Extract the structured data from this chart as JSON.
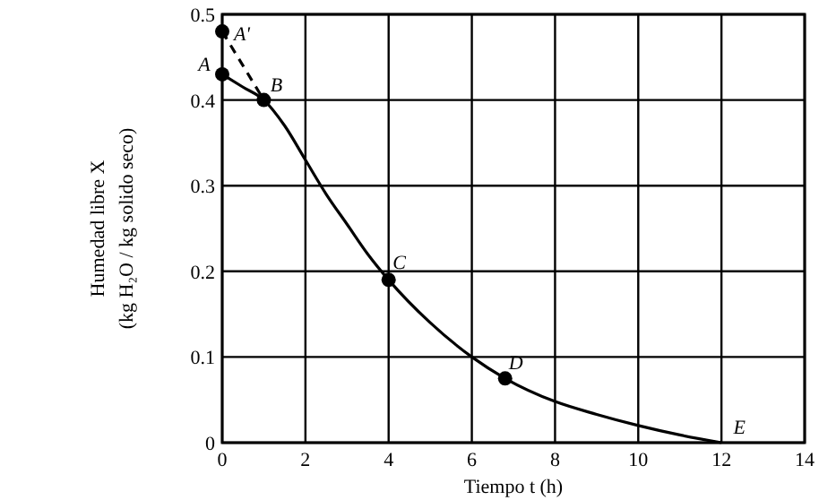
{
  "chart_data": {
    "type": "line",
    "xlabel": "Tiempo t (h)",
    "ylabel": "Humedad libre X (kg H₂O / kg solido seco)",
    "xlim": [
      0,
      14
    ],
    "xticks": [
      0,
      2,
      4,
      6,
      8,
      10,
      12,
      14
    ],
    "ylim": [
      0,
      0.5
    ],
    "yticks": [
      0,
      0.1,
      0.2,
      0.3,
      0.4,
      0.5
    ],
    "grid": true,
    "series": [
      {
        "color": "#000000",
        "line_style": "solid",
        "marker": "none",
        "x": [
          0,
          0.5,
          1,
          1.5,
          2,
          2.5,
          3,
          3.5,
          4,
          5,
          6,
          6.8,
          8,
          9,
          10,
          11,
          12
        ],
        "values": [
          0.43,
          0.415,
          0.4,
          0.37,
          0.33,
          0.29,
          0.255,
          0.22,
          0.19,
          0.14,
          0.1,
          0.075,
          0.048,
          0.033,
          0.02,
          0.009,
          0
        ]
      },
      {
        "color": "#000000",
        "line_style": "dashed",
        "marker": "none",
        "x": [
          0,
          1
        ],
        "values": [
          0.48,
          0.4
        ]
      },
      {
        "type": "scatter",
        "color": "#000000",
        "marker": "circle",
        "x": [
          0,
          0,
          1,
          4,
          6.8
        ],
        "values": [
          0.48,
          0.43,
          0.4,
          0.19,
          0.075
        ]
      }
    ],
    "annotations": [
      {
        "text": "A'",
        "x": 0,
        "y": 0.48
      },
      {
        "text": "A",
        "x": 0,
        "y": 0.43
      },
      {
        "text": "B",
        "x": 1,
        "y": 0.4
      },
      {
        "text": "C",
        "x": 4,
        "y": 0.19
      },
      {
        "text": "D",
        "x": 6.8,
        "y": 0.075
      },
      {
        "text": "E",
        "x": 12,
        "y": 0
      }
    ]
  }
}
